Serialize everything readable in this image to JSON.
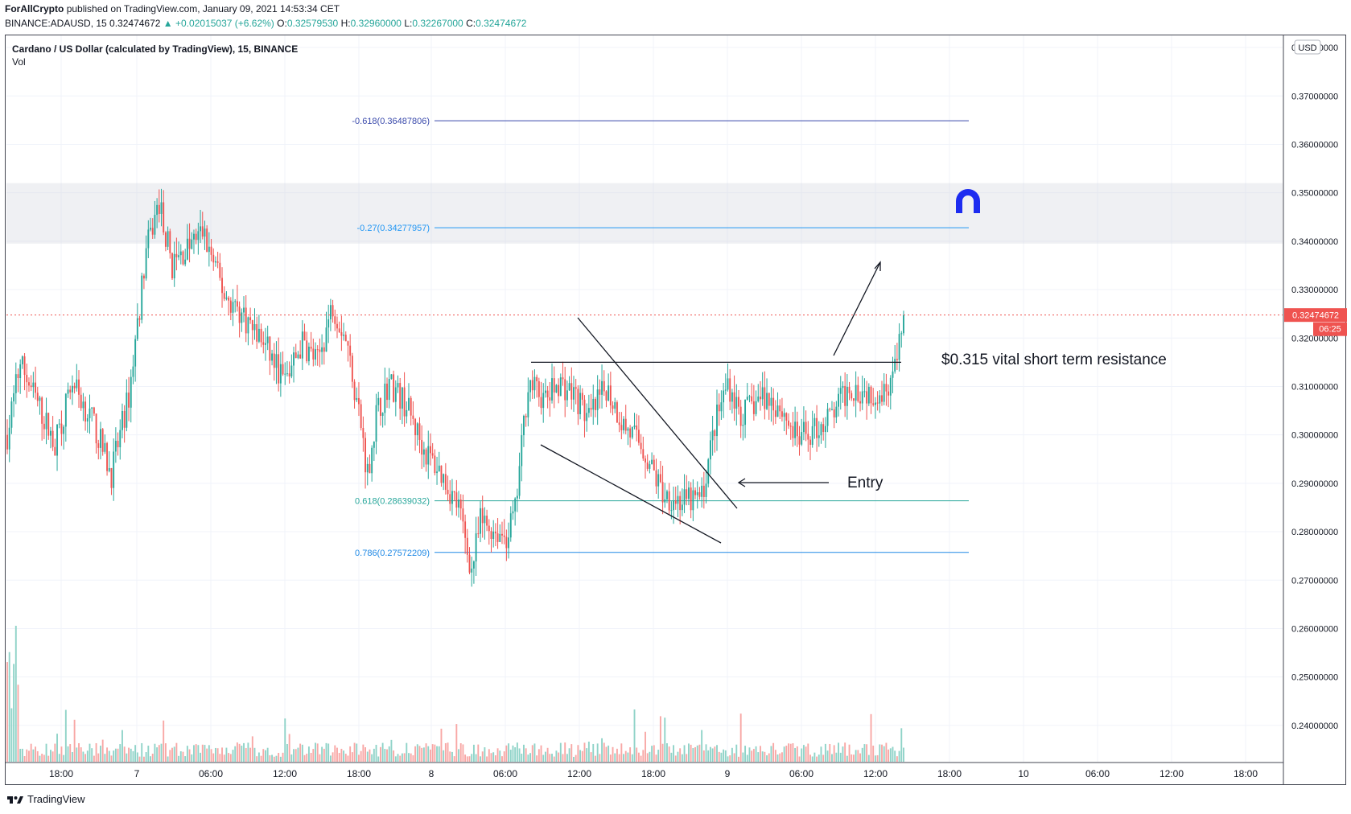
{
  "header": {
    "publisher": "ForAllCrypto",
    "published_text": "published on TradingView.com, January 09, 2021 14:53:34 CET",
    "symbol_line": "BINANCE:ADAUSD, 15",
    "last": "0.32474672",
    "change": "+0.02015037 (+6.62%)",
    "open_label": "O:",
    "open": "0.32579530",
    "high_label": "H:",
    "high": "0.32960000",
    "low_label": "L:",
    "low": "0.32267000",
    "close_label": "C:",
    "close": "0.32474672"
  },
  "chart_title": "Cardano / US Dollar (calculated by TradingView), 15, BINANCE",
  "vol_label": "Vol",
  "currency": "USD",
  "price_tag": "0.32474672",
  "countdown": "06:25",
  "footer_brand": "TradingView",
  "annotations": {
    "resistance": "$0.315 vital short term resistance",
    "entry": "Entry"
  },
  "fib_levels": [
    {
      "label": "-0.618(0.36487806)",
      "price": 0.36487806,
      "color": "#3949ab"
    },
    {
      "label": "-0.27(0.34277957)",
      "price": 0.34277957,
      "color": "#2196f3"
    },
    {
      "label": "0.618(0.28639032)",
      "price": 0.28639032,
      "color": "#26a69a"
    },
    {
      "label": "0.786(0.27572209)",
      "price": 0.27572209,
      "color": "#1e88e5"
    }
  ],
  "colors": {
    "up": "#26a69a",
    "down": "#ef5350",
    "up_vol": "#8fd3c8",
    "down_vol": "#f8a7a5",
    "zone": "#d1d4dc",
    "magnet": "#1d2cf0"
  },
  "chart_data": {
    "type": "candlestick",
    "y_ticks": [
      "0.38000000",
      "0.37000000",
      "0.36000000",
      "0.35000000",
      "0.34000000",
      "0.33000000",
      "0.32000000",
      "0.31000000",
      "0.30000000",
      "0.29000000",
      "0.28000000",
      "0.27000000",
      "0.26000000",
      "0.25000000",
      "0.24000000"
    ],
    "x_ticks": [
      "18:00",
      "7",
      "06:00",
      "12:00",
      "18:00",
      "8",
      "06:00",
      "12:00",
      "18:00",
      "9",
      "06:00",
      "12:00",
      "18:00",
      "10",
      "06:00",
      "12:00",
      "18:00"
    ],
    "ylim": [
      0.2325,
      0.3825
    ],
    "resistance_zone": [
      0.3395,
      0.352
    ],
    "resistance_level": 0.315,
    "last_price": 0.32474672,
    "price_path": [
      [
        0,
        0.3
      ],
      [
        6,
        0.315
      ],
      [
        22,
        0.298
      ],
      [
        30,
        0.311
      ],
      [
        40,
        0.302
      ],
      [
        48,
        0.292
      ],
      [
        56,
        0.308
      ],
      [
        64,
        0.338
      ],
      [
        70,
        0.348
      ],
      [
        76,
        0.335
      ],
      [
        90,
        0.342
      ],
      [
        100,
        0.329
      ],
      [
        108,
        0.325
      ],
      [
        118,
        0.319
      ],
      [
        128,
        0.311
      ],
      [
        136,
        0.319
      ],
      [
        143,
        0.315
      ],
      [
        150,
        0.327
      ],
      [
        156,
        0.32
      ],
      [
        162,
        0.305
      ],
      [
        166,
        0.292
      ],
      [
        170,
        0.304
      ],
      [
        176,
        0.311
      ],
      [
        184,
        0.306
      ],
      [
        192,
        0.297
      ],
      [
        200,
        0.292
      ],
      [
        208,
        0.285
      ],
      [
        214,
        0.272
      ],
      [
        218,
        0.282
      ],
      [
        226,
        0.28
      ],
      [
        230,
        0.279
      ],
      [
        234,
        0.284
      ],
      [
        240,
        0.311
      ],
      [
        248,
        0.307
      ],
      [
        254,
        0.311
      ],
      [
        262,
        0.308
      ],
      [
        268,
        0.303
      ],
      [
        276,
        0.31
      ],
      [
        284,
        0.302
      ],
      [
        292,
        0.298
      ],
      [
        302,
        0.288
      ],
      [
        312,
        0.286
      ],
      [
        320,
        0.287
      ],
      [
        326,
        0.302
      ],
      [
        332,
        0.311
      ],
      [
        338,
        0.304
      ],
      [
        348,
        0.308
      ],
      [
        356,
        0.306
      ],
      [
        364,
        0.299
      ],
      [
        372,
        0.301
      ],
      [
        380,
        0.304
      ],
      [
        388,
        0.31
      ],
      [
        396,
        0.309
      ],
      [
        404,
        0.309
      ],
      [
        410,
        0.315
      ],
      [
        413,
        0.3247
      ]
    ],
    "x_axis": {
      "bars_total": 588,
      "last_bar": 413
    }
  }
}
